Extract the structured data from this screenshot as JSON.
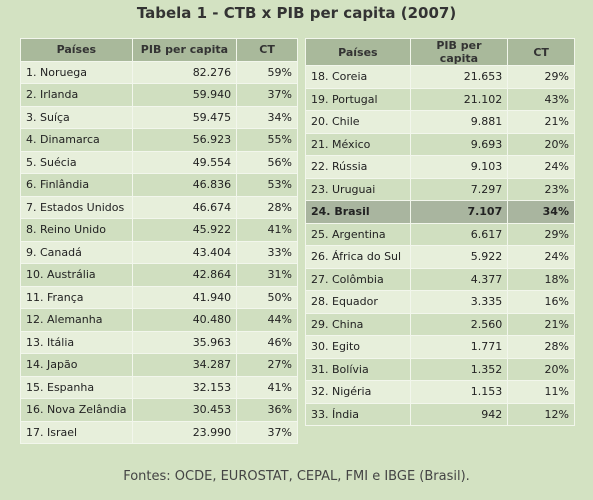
{
  "title": "Tabela 1 - CTB  x PIB per capita (2007)",
  "tables": [
    {
      "headers": [
        "Países",
        "PIB per capita",
        "CT"
      ],
      "rows": [
        [
          "1. Noruega",
          "82.276",
          "59%"
        ],
        [
          "2. Irlanda",
          "59.940",
          "37%"
        ],
        [
          "3. Suíça",
          "59.475",
          "34%"
        ],
        [
          "4. Dinamarca",
          "56.923",
          "55%"
        ],
        [
          "5. Suécia",
          "49.554",
          "56%"
        ],
        [
          "6. Finlândia",
          "46.836",
          "53%"
        ],
        [
          "7. Estados Unidos",
          "46.674",
          "28%"
        ],
        [
          "8. Reino Unido",
          "45.922",
          "41%"
        ],
        [
          "9. Canadá",
          "43.404",
          "33%"
        ],
        [
          "10. Austrália",
          "42.864",
          "31%"
        ],
        [
          "11. França",
          "41.940",
          "50%"
        ],
        [
          "12. Alemanha",
          "40.480",
          "44%"
        ],
        [
          "13. Itália",
          "35.963",
          "46%"
        ],
        [
          "14. Japão",
          "34.287",
          "27%"
        ],
        [
          "15. Espanha",
          "32.153",
          "41%"
        ],
        [
          "16. Nova Zelândia",
          "30.453",
          "36%"
        ],
        [
          "17. Israel",
          "23.990",
          "37%"
        ]
      ]
    },
    {
      "headers": [
        "Países",
        "PIB per capita",
        "CT"
      ],
      "highlighted_row": 6,
      "rows": [
        [
          "18. Coreia",
          "21.653",
          "29%"
        ],
        [
          "19. Portugal",
          "21.102",
          "43%"
        ],
        [
          "20. Chile",
          "9.881",
          "21%"
        ],
        [
          "21. México",
          "9.693",
          "20%"
        ],
        [
          "22. Rússia",
          "9.103",
          "24%"
        ],
        [
          "23. Uruguai",
          "7.297",
          "23%"
        ],
        [
          "24. Brasil",
          "7.107",
          "34%"
        ],
        [
          "25. Argentina",
          "6.617",
          "29%"
        ],
        [
          "26. África do Sul",
          "5.922",
          "24%"
        ],
        [
          "27. Colômbia",
          "4.377",
          "18%"
        ],
        [
          "28. Equador",
          "3.335",
          "16%"
        ],
        [
          "29. China",
          "2.560",
          "21%"
        ],
        [
          "30. Egito",
          "1.771",
          "28%"
        ],
        [
          "31. Bolívia",
          "1.352",
          "20%"
        ],
        [
          "32. Nigéria",
          "1.153",
          "11%"
        ],
        [
          "33. Índia",
          "942",
          "12%"
        ]
      ]
    }
  ],
  "source": "Fontes: OCDE, EUROSTAT, CEPAL, FMI e IBGE (Brasil)."
}
